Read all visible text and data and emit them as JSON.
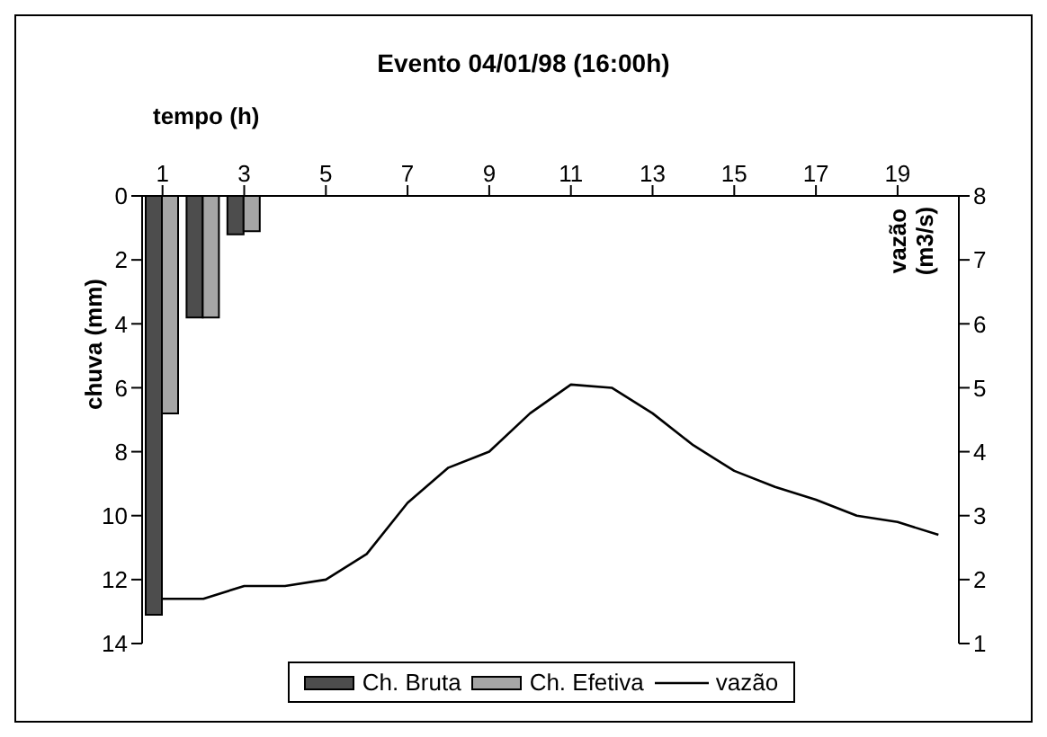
{
  "chart_data": {
    "type": "bar",
    "title": "Evento 04/01/98 (16:00h)",
    "xlabel": "tempo (h)",
    "ylabel": "chuva (mm)",
    "y2label": "vazão (m3/s)",
    "x": [
      1,
      2,
      3,
      4,
      5,
      6,
      7,
      8,
      9,
      10,
      11,
      12,
      13,
      14,
      15,
      16,
      17,
      18,
      19,
      20
    ],
    "xlim": [
      0.5,
      20.5
    ],
    "xticks": [
      1,
      3,
      5,
      7,
      9,
      11,
      13,
      15,
      17,
      19
    ],
    "series": [
      {
        "name": "Ch. Bruta",
        "color": "#4d4d4d",
        "values": [
          13.1,
          3.8,
          1.2,
          null,
          null,
          null,
          null,
          null,
          null,
          null,
          null,
          null,
          null,
          null,
          null,
          null,
          null,
          null,
          null,
          null
        ]
      },
      {
        "name": "Ch. Efetiva",
        "color": "#a6a6a6",
        "values": [
          6.8,
          3.8,
          1.1,
          null,
          null,
          null,
          null,
          null,
          null,
          null,
          null,
          null,
          null,
          null,
          null,
          null,
          null,
          null,
          null,
          null
        ]
      },
      {
        "name": "vazão",
        "type": "line",
        "axis": "y2",
        "color": "#000000",
        "values": [
          1.7,
          1.7,
          1.9,
          1.9,
          2.0,
          2.4,
          3.2,
          3.75,
          4.0,
          4.6,
          5.05,
          5.0,
          4.6,
          4.1,
          3.7,
          3.45,
          3.25,
          3.0,
          2.9,
          2.7
        ]
      }
    ],
    "ylim": [
      14,
      0
    ],
    "yticks": [
      0,
      2,
      4,
      6,
      8,
      10,
      12,
      14
    ],
    "y2lim": [
      1,
      8
    ],
    "y2ticks": [
      1,
      2,
      3,
      4,
      5,
      6,
      7,
      8
    ],
    "legend": "bottom",
    "marker": "none"
  }
}
